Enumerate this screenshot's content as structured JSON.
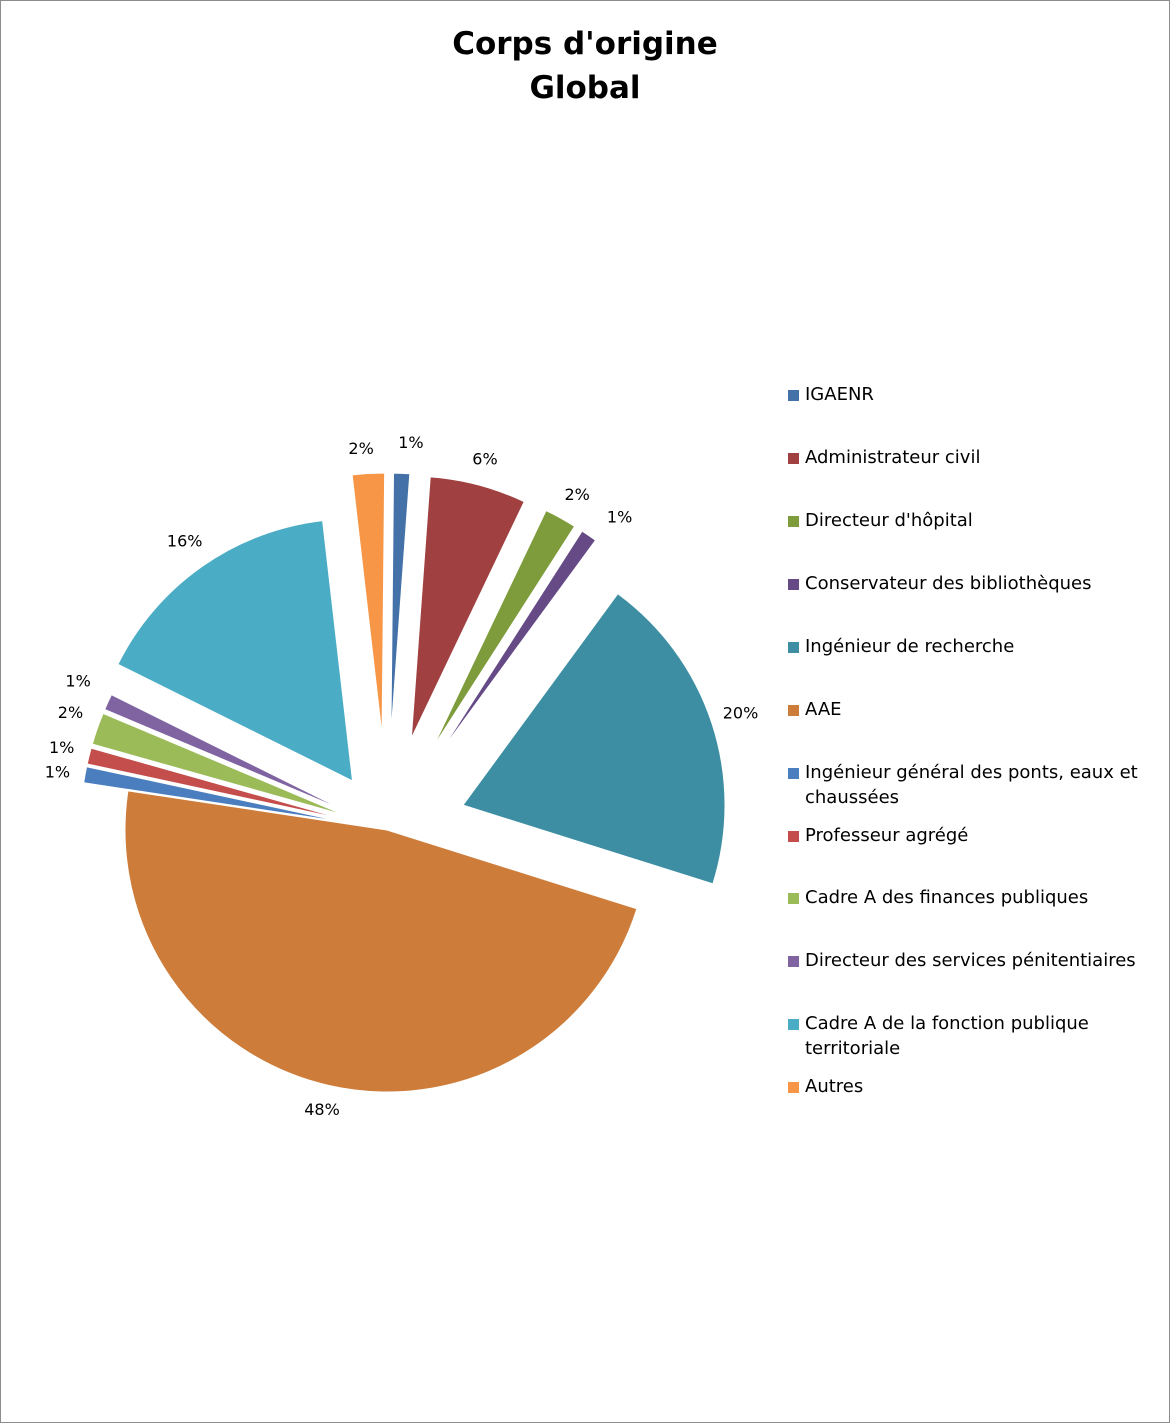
{
  "chart_data": {
    "type": "pie",
    "title": [
      "Corps d'origine",
      "Global"
    ],
    "legend_position": "right",
    "slices": [
      {
        "label": "IGAENR",
        "value": 1,
        "display": "1%",
        "color": "#4472A8"
      },
      {
        "label": "Administrateur civil",
        "value": 6,
        "display": "6%",
        "color": "#A04040"
      },
      {
        "label": "Directeur d'hôpital",
        "value": 2,
        "display": "2%",
        "color": "#7E9C3C"
      },
      {
        "label": "Conservateur des bibliothèques",
        "value": 1,
        "display": "1%",
        "color": "#654A86"
      },
      {
        "label": "Ingénieur de recherche",
        "value": 20,
        "display": "20%",
        "color": "#3D8EA3"
      },
      {
        "label": "AAE",
        "value": 48,
        "display": "48%",
        "color": "#CD7C3A"
      },
      {
        "label": "Ingénieur général des ponts, eaux et chaussées",
        "value": 1,
        "display": "1%",
        "color": "#4A7EBF"
      },
      {
        "label": "Professeur agrégé",
        "value": 1,
        "display": "1%",
        "color": "#C44E4B"
      },
      {
        "label": "Cadre A des finances publiques",
        "value": 2,
        "display": "2%",
        "color": "#9BBB59"
      },
      {
        "label": "Directeur des services pénitentiaires",
        "value": 1,
        "display": "1%",
        "color": "#8064A2"
      },
      {
        "label": "Cadre A de la fonction publique territoriale",
        "value": 16,
        "display": "16%",
        "color": "#4BACC6"
      },
      {
        "label": "Autres",
        "value": 2,
        "display": "2%",
        "color": "#F79646"
      }
    ]
  }
}
